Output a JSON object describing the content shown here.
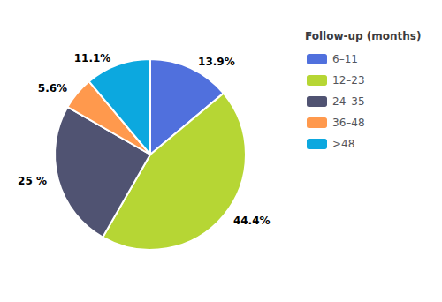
{
  "chart_data": {
    "type": "pie",
    "categories": [
      "6–11",
      "12–23",
      "24–35",
      "36–48",
      ">48"
    ],
    "values": [
      13.9,
      44.4,
      25.0,
      5.6,
      11.1
    ],
    "value_labels": [
      "13.9%",
      "44.4%",
      "25 %",
      "5.6%",
      "11.1%"
    ],
    "data_labels": true,
    "legend_title": "Follow-up (months)",
    "legend": "upper right"
  }
}
